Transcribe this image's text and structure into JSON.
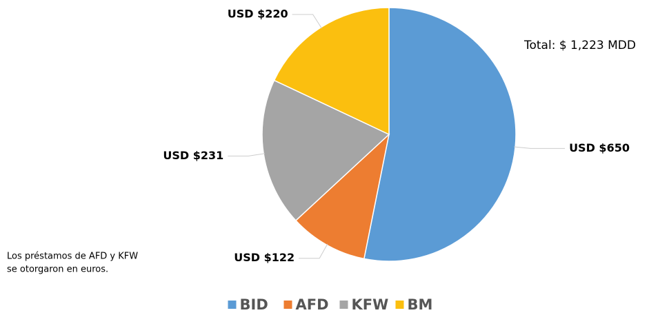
{
  "chart_data": {
    "type": "pie",
    "categories": [
      "BID",
      "AFD",
      "KFW",
      "BM"
    ],
    "values": [
      650,
      122,
      231,
      220
    ],
    "value_labels": [
      "USD $650",
      "USD $122",
      "USD $231",
      "USD $220"
    ],
    "colors": [
      "#5b9bd5",
      "#ed7d31",
      "#a5a5a5",
      "#fbbf0f"
    ],
    "annotations": [
      "Total: $ 1,223 MDD"
    ],
    "note": [
      "Los préstamos de AFD y KFW",
      "se otorgaron en euros."
    ],
    "legend": "bottom"
  }
}
